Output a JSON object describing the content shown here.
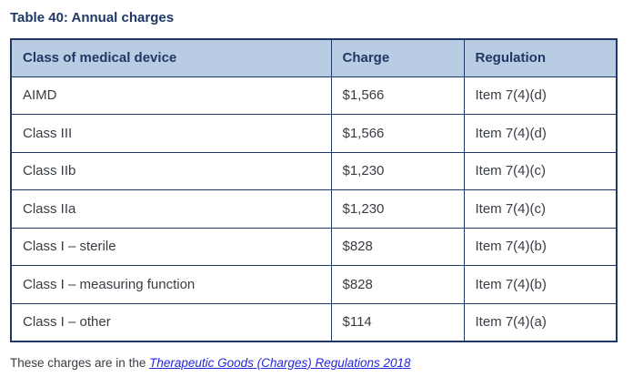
{
  "page": {
    "title": "Table 40: Annual charges"
  },
  "table": {
    "columns": [
      "Class of medical device",
      "Charge",
      "Regulation"
    ],
    "rows": [
      {
        "device_class": "AIMD",
        "charge": "$1,566",
        "regulation": "Item 7(4)(d)"
      },
      {
        "device_class": "Class III",
        "charge": "$1,566",
        "regulation": "Item 7(4)(d)"
      },
      {
        "device_class": "Class IIb",
        "charge": "$1,230",
        "regulation": "Item 7(4)(c)"
      },
      {
        "device_class": "Class IIa",
        "charge": "$1,230",
        "regulation": "Item 7(4)(c)"
      },
      {
        "device_class": "Class I – sterile",
        "charge": "$828",
        "regulation": "Item 7(4)(b)"
      },
      {
        "device_class": "Class I – measuring function",
        "charge": "$828",
        "regulation": "Item 7(4)(b)"
      },
      {
        "device_class": "Class I – other",
        "charge": "$114",
        "regulation": "Item 7(4)(a)"
      }
    ]
  },
  "footer": {
    "text": "These charges are in the",
    "link": "Therapeutic Goods (Charges) Regulations 2018"
  },
  "colors": {
    "accent_border": "#1f3864",
    "header_fill": "#b8cce4",
    "heading_text": "#1f3864",
    "body_text": "#383d44",
    "link_blue": "#2727dd"
  }
}
